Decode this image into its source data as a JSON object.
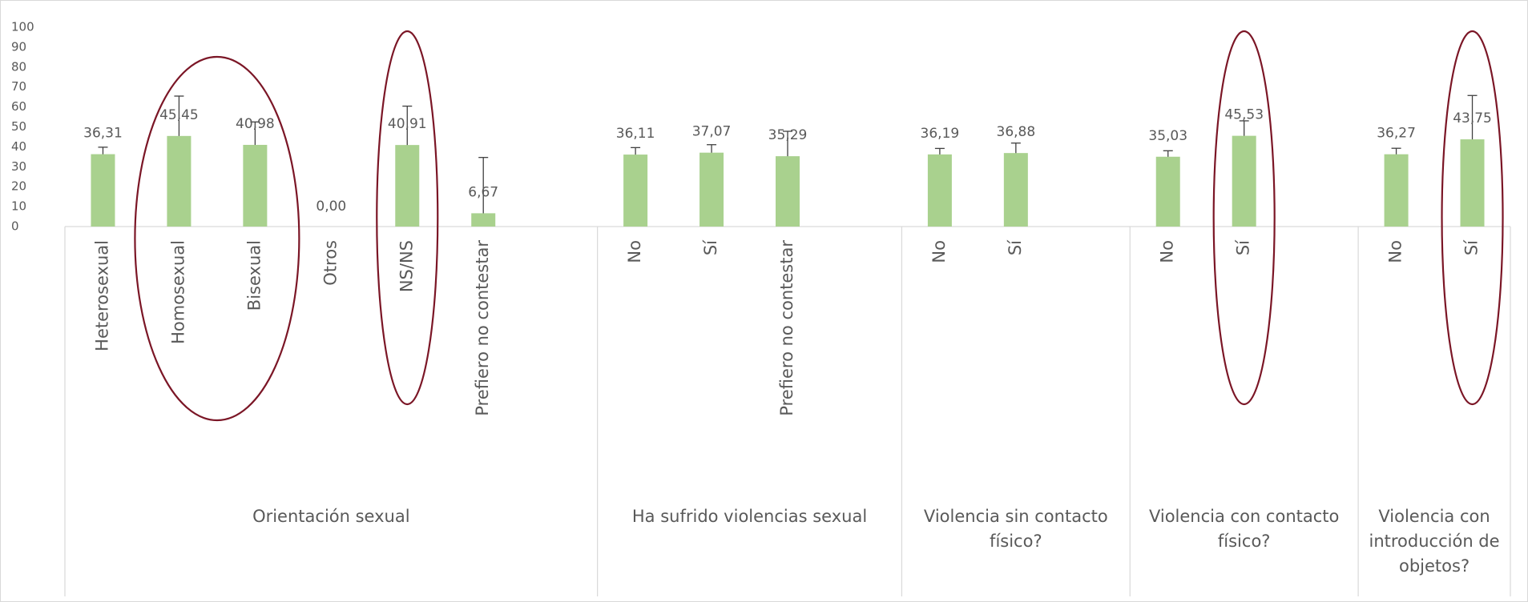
{
  "chart_data": {
    "type": "bar",
    "color": "#a9d18e",
    "error_color": "#404040",
    "ylim": [
      0,
      100
    ],
    "yticks": [
      0,
      10,
      20,
      30,
      40,
      50,
      60,
      70,
      80,
      90,
      100
    ],
    "groups": [
      {
        "name": "Orientación sexual",
        "categories": [
          "Heterosexual",
          "Homosexual",
          "Bisexual",
          "Otros",
          "NS/NS",
          "Prefiero no contestar"
        ],
        "values": [
          36.31,
          45.45,
          40.98,
          0,
          40.91,
          6.67
        ],
        "value_labels": [
          "36,31",
          "45,45",
          "40,98",
          "0,00",
          "40,91",
          "6,67"
        ],
        "errors": [
          3.5,
          20,
          11.5,
          null,
          19.5,
          28
        ]
      },
      {
        "name": "Ha sufrido violencias sexual",
        "categories": [
          "No",
          "Sí",
          "Prefiero no contestar"
        ],
        "values": [
          36.11,
          37.07,
          35.29
        ],
        "value_labels": [
          "36,11",
          "37,07",
          "35,29"
        ],
        "errors": [
          3.5,
          4,
          12.5
        ]
      },
      {
        "name": "Violencia sin contacto físico?",
        "categories": [
          "No",
          "Sí"
        ],
        "values": [
          36.19,
          36.88
        ],
        "value_labels": [
          "36,19",
          "36,88"
        ],
        "errors": [
          3,
          5
        ]
      },
      {
        "name": "Violencia con contacto físico?",
        "categories": [
          "No",
          "Sí"
        ],
        "values": [
          35.03,
          45.53
        ],
        "value_labels": [
          "35,03",
          "45,53"
        ],
        "errors": [
          3,
          7.5
        ]
      },
      {
        "name": "Violencia con introducción de objetos?",
        "categories": [
          "No",
          "Sí"
        ],
        "values": [
          36.27,
          43.75
        ],
        "value_labels": [
          "36,27",
          "43,75"
        ],
        "errors": [
          3,
          22
        ]
      }
    ]
  }
}
